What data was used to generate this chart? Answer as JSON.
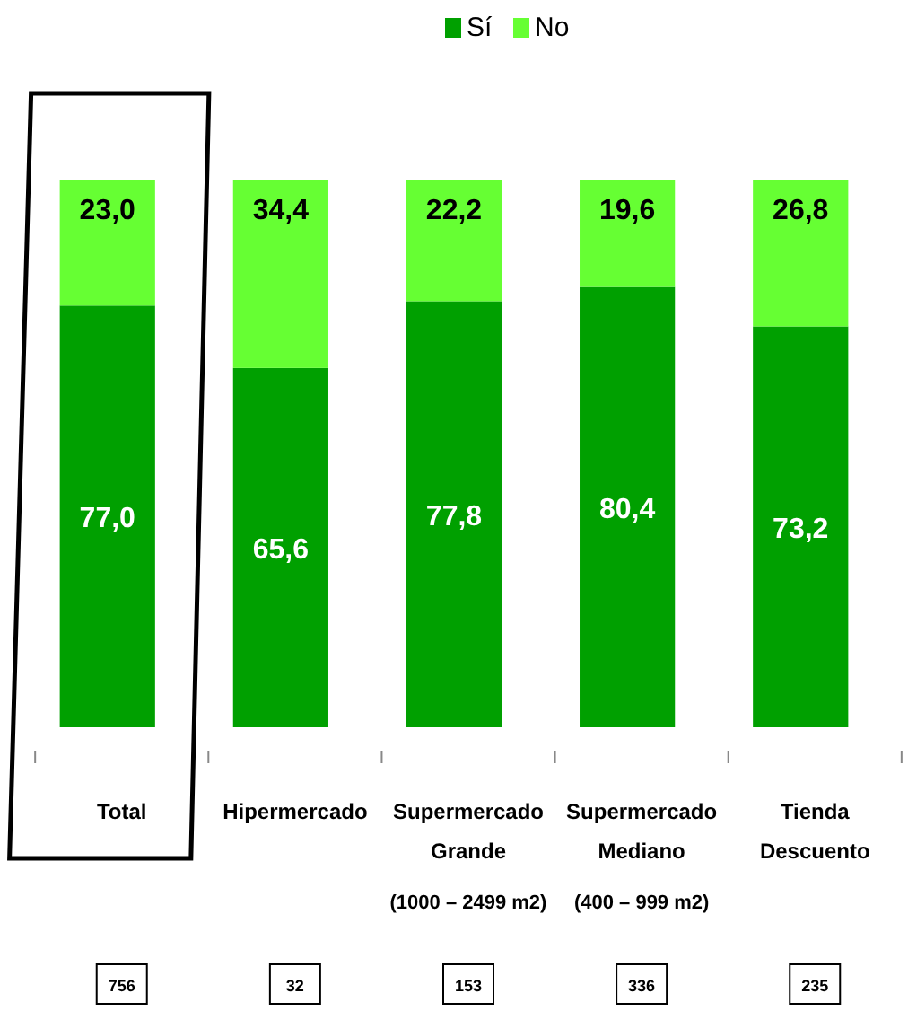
{
  "chart_data": {
    "type": "bar",
    "stacked": true,
    "legend": "top",
    "ylim": [
      0,
      100
    ],
    "tick_labels": "x",
    "categories": [
      "Total",
      "Hipermercado",
      "Supermercado\nGrande\n(1000 – 2499 m2)",
      "Supermercado\nMediano\n(400 – 999 m2)",
      "Tienda\nDescuento"
    ],
    "series": [
      {
        "name": "Sí",
        "color": "#00a000",
        "values": [
          77.0,
          65.6,
          77.8,
          80.4,
          73.2
        ],
        "value_labels": [
          "77,0",
          "65,6",
          "77,8",
          "80,4",
          "73,2"
        ]
      },
      {
        "name": "No",
        "color": "#66ff33",
        "values": [
          23.0,
          34.4,
          22.2,
          19.6,
          26.8
        ],
        "value_labels": [
          "23,0",
          "34,4",
          "22,2",
          "19,6",
          "26,8"
        ]
      }
    ],
    "annotations": [
      "756",
      "32",
      "153",
      "336",
      "235"
    ]
  }
}
